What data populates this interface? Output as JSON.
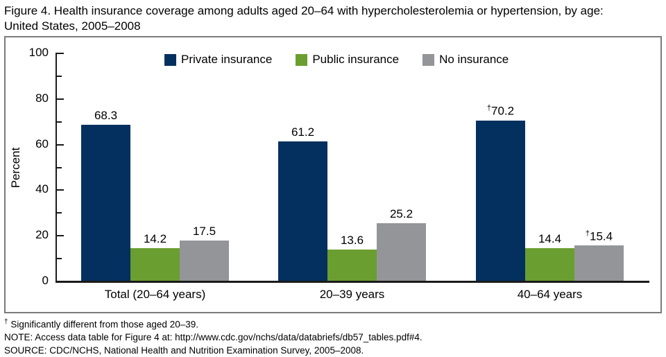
{
  "chart_data": {
    "type": "bar",
    "title": "Figure 4. Health insurance coverage among adults aged 20–64 with hypercholesterolemia or hypertension, by age:\nUnited States, 2005–2008",
    "categories": [
      "Total (20–64 years)",
      "20–39 years",
      "40–64 years"
    ],
    "series": [
      {
        "name": "Private insurance",
        "color": "#03305e",
        "values": [
          68.3,
          61.2,
          70.2
        ],
        "daggers": [
          false,
          false,
          true
        ]
      },
      {
        "name": "Public insurance",
        "color": "#6b9e30",
        "values": [
          14.2,
          13.6,
          14.4
        ],
        "daggers": [
          false,
          false,
          false
        ]
      },
      {
        "name": "No insurance",
        "color": "#939598",
        "values": [
          17.5,
          25.2,
          15.4
        ],
        "daggers": [
          false,
          false,
          true
        ]
      }
    ],
    "xlabel": "",
    "ylabel": "Percent",
    "ylim": [
      0,
      100
    ],
    "ytick_major": [
      0,
      20,
      40,
      60,
      80,
      100
    ],
    "ytick_minor": [
      10,
      30,
      50,
      70,
      90
    ],
    "grid": false,
    "legend_position": "top",
    "dagger_symbol": "†"
  },
  "footnotes": {
    "dagger_symbol": "†",
    "dagger_text": " Significantly different from those aged 20–39.",
    "note": "NOTE: Access data table for Figure 4 at: http://www.cdc.gov/nchs/data/databriefs/db57_tables.pdf#4.",
    "source": "SOURCE: CDC/NCHS, National Health and Nutrition Examination Survey, 2005–2008."
  }
}
